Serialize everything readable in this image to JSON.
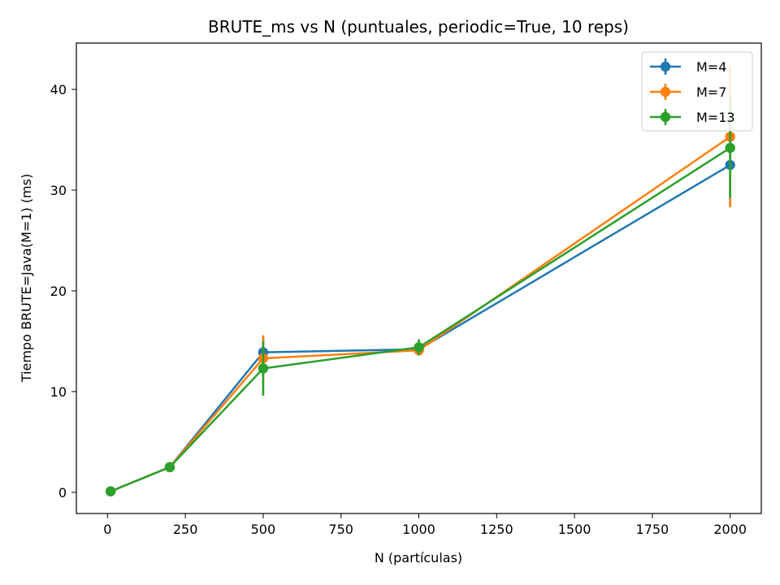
{
  "chart_data": {
    "type": "line",
    "title": "BRUTE_ms vs N (puntuales, periodic=True, 10 reps)",
    "xlabel": "N (partículas)",
    "ylabel": "Tiempo BRUTE=Java(M=1) (ms)",
    "xlim": [
      -100,
      2100
    ],
    "ylim": [
      -2.1,
      44.6
    ],
    "xticks": [
      0,
      250,
      500,
      750,
      1000,
      1250,
      1500,
      1750,
      2000
    ],
    "yticks": [
      0,
      10,
      20,
      30,
      40
    ],
    "x": [
      10,
      200,
      500,
      1000,
      2000
    ],
    "grid": false,
    "legend_position": "top-right",
    "series": [
      {
        "name": "M=4",
        "color": "#1f77b4",
        "values": [
          0.1,
          2.5,
          13.9,
          14.2,
          32.5
        ],
        "err": [
          0.05,
          0.2,
          1.5,
          0.4,
          4.0
        ]
      },
      {
        "name": "M=7",
        "color": "#ff7f0e",
        "values": [
          0.1,
          2.5,
          13.3,
          14.1,
          35.3
        ],
        "err": [
          0.05,
          0.2,
          2.3,
          0.4,
          7.0
        ]
      },
      {
        "name": "M=13",
        "color": "#2ca02c",
        "values": [
          0.1,
          2.5,
          12.3,
          14.4,
          34.2
        ],
        "err": [
          0.05,
          0.2,
          2.7,
          0.8,
          5.0
        ]
      }
    ]
  }
}
